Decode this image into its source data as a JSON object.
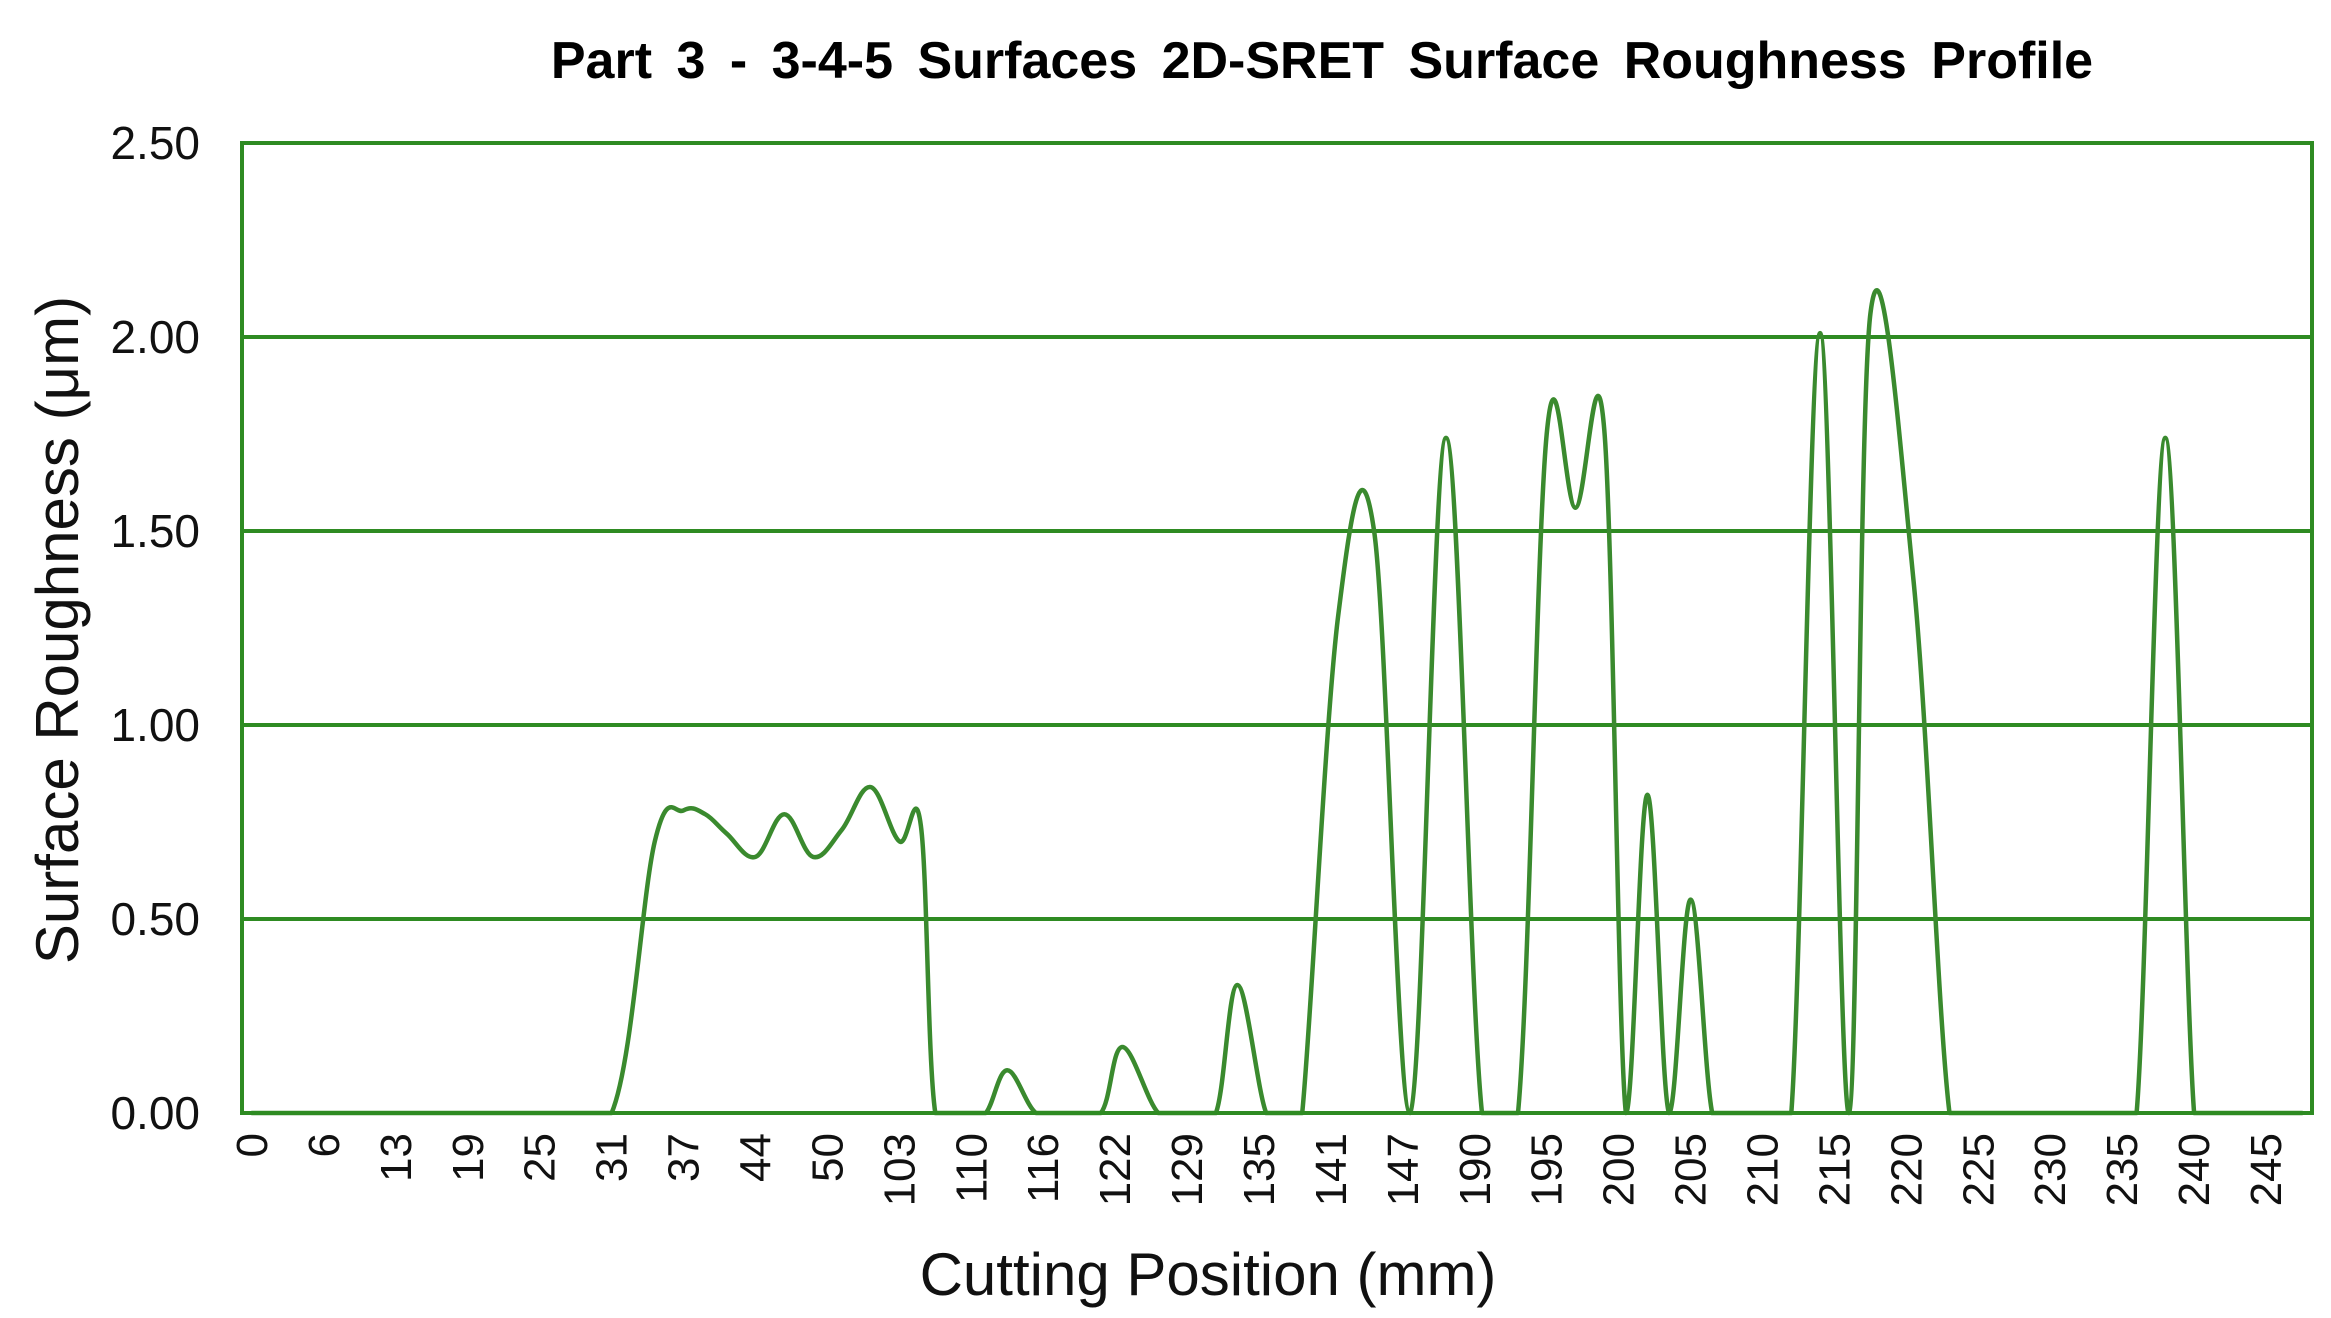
{
  "chart_data": {
    "type": "line",
    "title": "Part 3 - 3-4-5 Surfaces 2D-SRET Surface Roughness Profile",
    "xlabel": "Cutting Position (mm)",
    "ylabel": "Surface Roughness (μm)",
    "ylim": [
      0,
      2.5
    ],
    "y_ticks": [
      "0.00",
      "0.50",
      "1.00",
      "1.50",
      "2.00",
      "2.50"
    ],
    "grid": "horizontal",
    "line_color": "#3a8a2e",
    "grid_color": "#2e8b22",
    "categories": [
      "0",
      "6",
      "13",
      "19",
      "25",
      "31",
      "37",
      "44",
      "50",
      "103",
      "110",
      "116",
      "122",
      "129",
      "135",
      "141",
      "147",
      "190",
      "195",
      "200",
      "205",
      "210",
      "215",
      "220",
      "225",
      "230",
      "235",
      "240",
      "245"
    ],
    "series": [
      {
        "x": [
          0,
          2,
          4,
          5,
          5.6,
          6,
          6.3,
          6.6,
          7,
          7.4,
          7.8,
          8.2,
          8.6,
          9,
          9.3,
          9.5,
          9.9,
          10.2,
          10.5,
          10.9,
          11.3,
          11.8,
          12.1,
          12.6,
          13.0,
          13.4,
          13.7,
          14.1,
          14.4,
          14.6,
          15.1,
          15.6,
          16.1,
          16.6,
          17.1,
          17.6,
          18.0,
          18.4,
          18.8,
          19.1,
          19.4,
          19.7,
          20.0,
          20.3,
          20.6,
          21.0,
          21.4,
          21.8,
          22.2,
          22.5,
          23.1,
          23.6,
          24.0,
          24.5,
          25.0,
          25.4,
          25.8,
          26.2,
          26.6,
          27.0,
          27.3,
          28.5
        ],
        "values": [
          0,
          0,
          0,
          0,
          0.7,
          0.78,
          0.77,
          0.72,
          0.66,
          0.77,
          0.66,
          0.73,
          0.84,
          0.7,
          0.74,
          0,
          0,
          0,
          0.11,
          0,
          0,
          0,
          0.17,
          0,
          0,
          0,
          0.33,
          0,
          0,
          0,
          1.28,
          1.5,
          0,
          1.74,
          0,
          0,
          1.75,
          1.56,
          1.76,
          0,
          0.82,
          0,
          0.55,
          0,
          0,
          0,
          0,
          2.01,
          0,
          2.06,
          1.37,
          0,
          0,
          0,
          0,
          0,
          0,
          0,
          1.74,
          0,
          0,
          0
        ]
      }
    ]
  }
}
